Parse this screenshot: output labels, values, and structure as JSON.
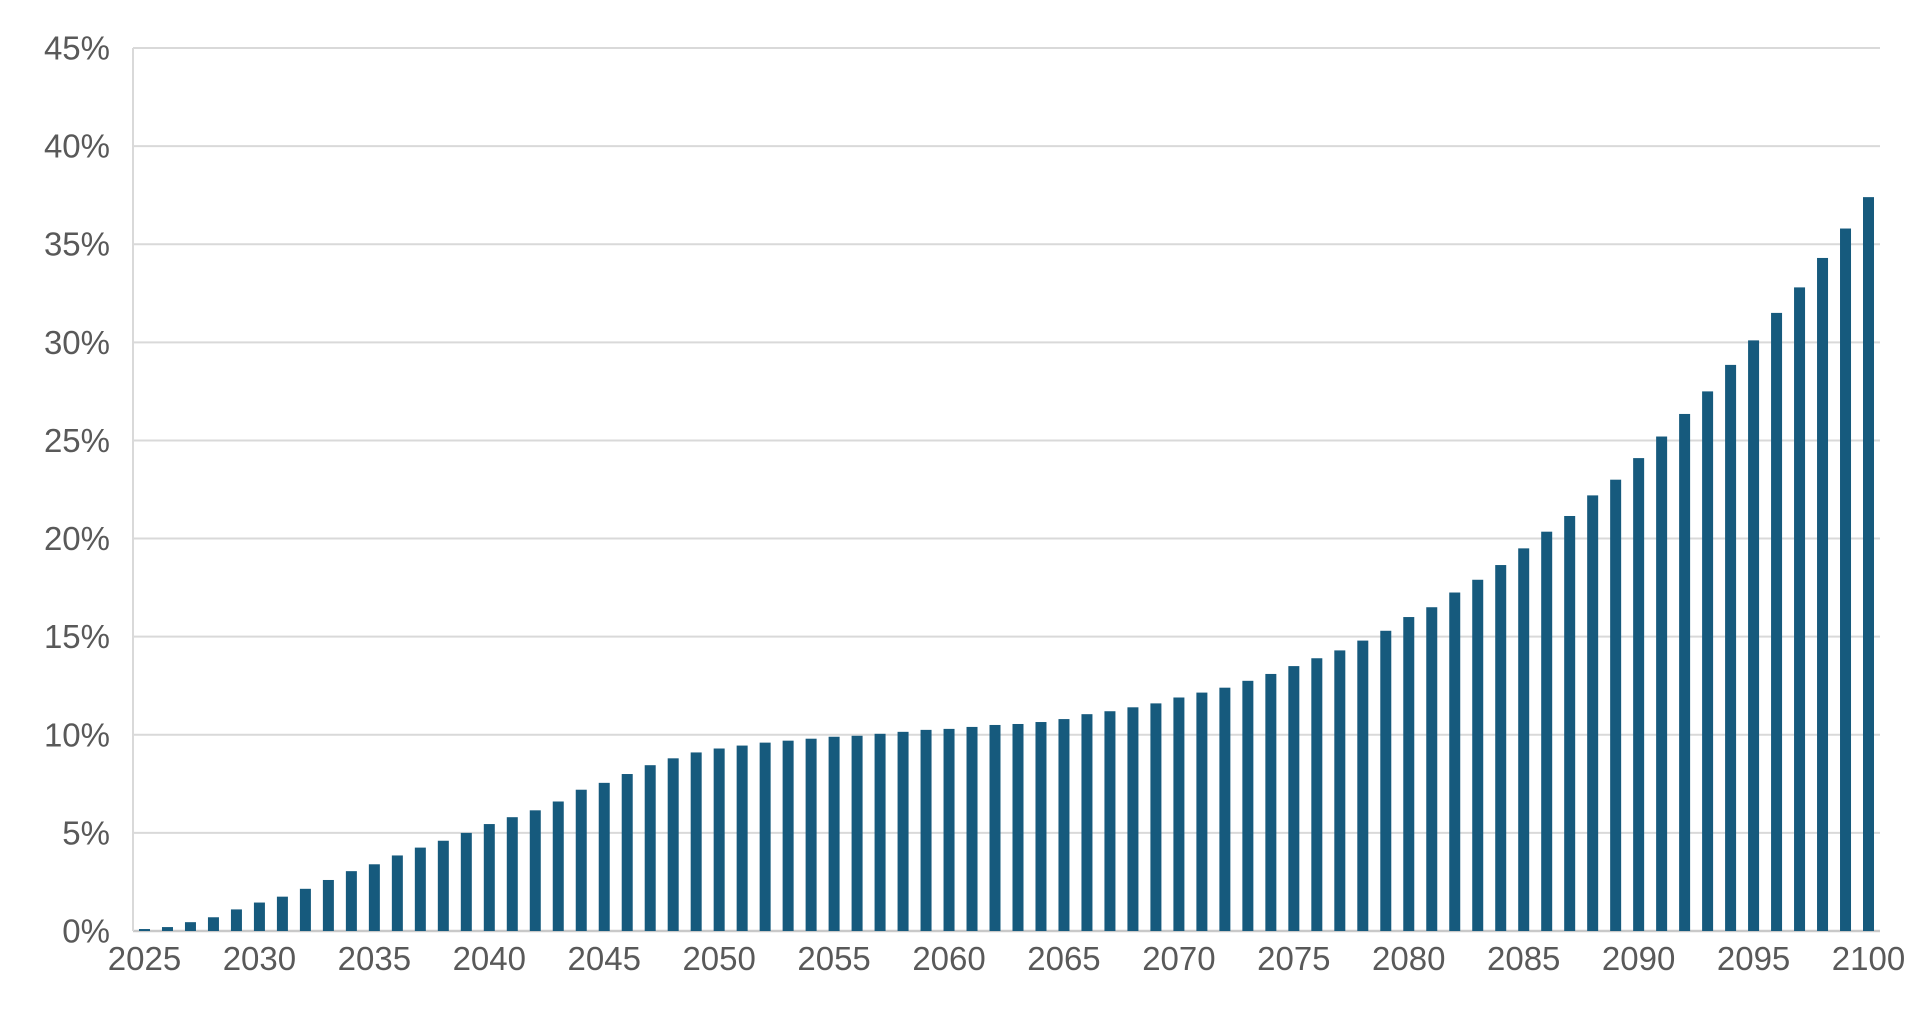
{
  "chart_data": {
    "type": "bar",
    "title": "",
    "xlabel": "",
    "ylabel": "",
    "unit": "%",
    "categories": [
      2025,
      2026,
      2027,
      2028,
      2029,
      2030,
      2031,
      2032,
      2033,
      2034,
      2035,
      2036,
      2037,
      2038,
      2039,
      2040,
      2041,
      2042,
      2043,
      2044,
      2045,
      2046,
      2047,
      2048,
      2049,
      2050,
      2051,
      2052,
      2053,
      2054,
      2055,
      2056,
      2057,
      2058,
      2059,
      2060,
      2061,
      2062,
      2063,
      2064,
      2065,
      2066,
      2067,
      2068,
      2069,
      2070,
      2071,
      2072,
      2073,
      2074,
      2075,
      2076,
      2077,
      2078,
      2079,
      2080,
      2081,
      2082,
      2083,
      2084,
      2085,
      2086,
      2087,
      2088,
      2089,
      2090,
      2091,
      2092,
      2093,
      2094,
      2095,
      2096,
      2097,
      2098,
      2099,
      2100
    ],
    "values": [
      0.1,
      0.2,
      0.45,
      0.7,
      1.1,
      1.45,
      1.75,
      2.15,
      2.6,
      3.05,
      3.4,
      3.85,
      4.25,
      4.6,
      5.0,
      5.45,
      5.8,
      6.15,
      6.6,
      7.2,
      7.55,
      8.0,
      8.45,
      8.8,
      9.1,
      9.3,
      9.45,
      9.6,
      9.7,
      9.8,
      9.9,
      9.95,
      10.05,
      10.15,
      10.25,
      10.3,
      10.4,
      10.5,
      10.55,
      10.65,
      10.8,
      11.05,
      11.2,
      11.4,
      11.6,
      11.9,
      12.15,
      12.4,
      12.75,
      13.1,
      13.5,
      13.9,
      14.3,
      14.8,
      15.3,
      16.0,
      16.5,
      17.25,
      17.9,
      18.65,
      19.5,
      20.35,
      21.15,
      22.2,
      23.0,
      24.1,
      25.2,
      26.35,
      27.5,
      28.85,
      30.1,
      31.5,
      32.8,
      34.3,
      35.8,
      37.4
    ],
    "ylim": [
      0,
      45
    ],
    "y_tick_step": 5,
    "y_tick_labels": [
      "0%",
      "5%",
      "10%",
      "15%",
      "20%",
      "25%",
      "30%",
      "35%",
      "40%",
      "45%"
    ],
    "x_tick_labels": [
      "2025",
      "2030",
      "2035",
      "2040",
      "2045",
      "2050",
      "2055",
      "2060",
      "2065",
      "2070",
      "2075",
      "2080",
      "2085",
      "2090",
      "2095",
      "2100"
    ],
    "x_tick_interval": 5,
    "grid": true,
    "legend_position": "none",
    "colors": {
      "bar": "#165a7d",
      "gridline": "#d9d9d9",
      "axis_line": "#c9c9c9",
      "tick_label": "#595959",
      "background": "#ffffff"
    }
  }
}
